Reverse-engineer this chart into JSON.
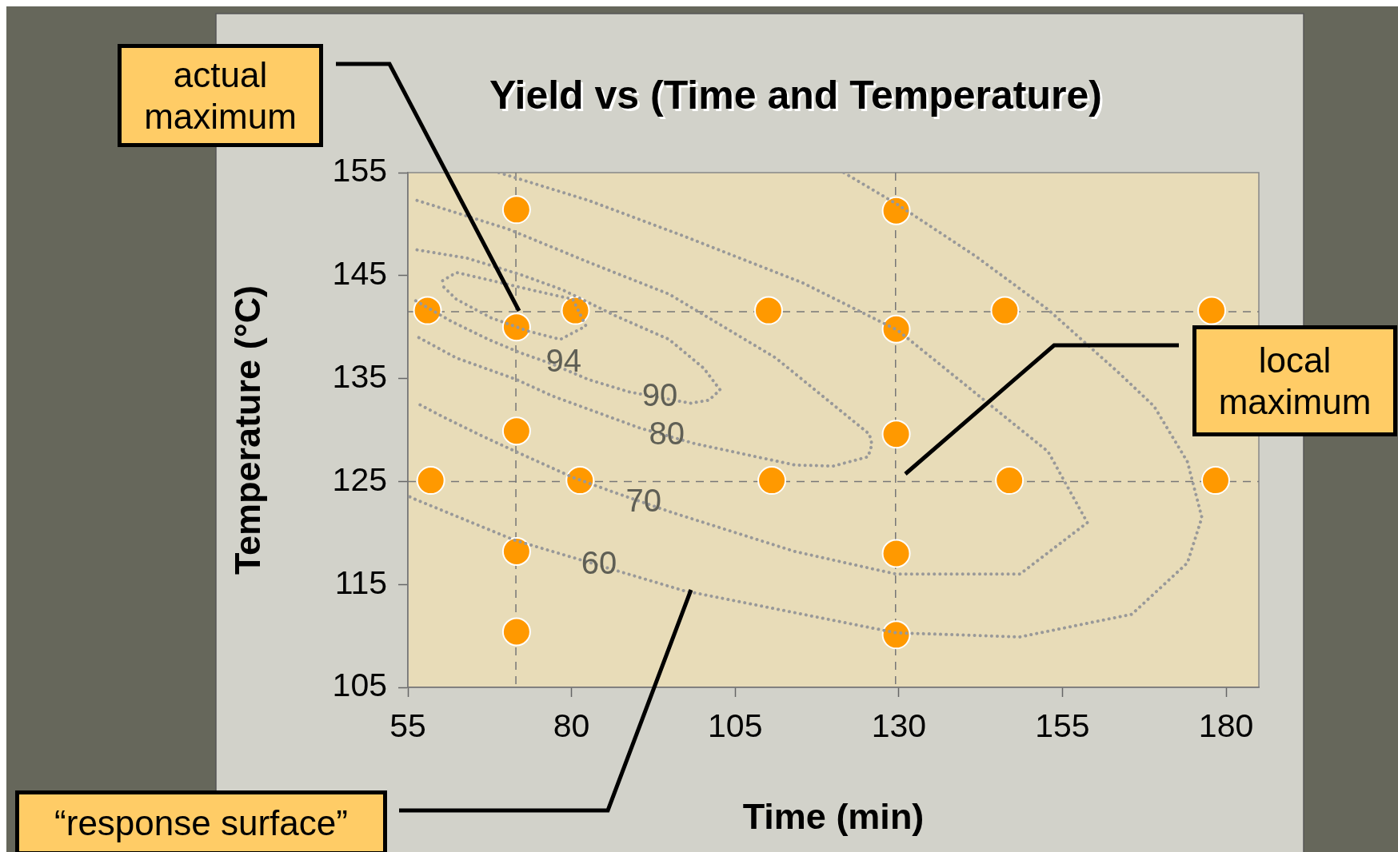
{
  "chart_data": {
    "type": "scatter",
    "title": "Yield vs (Time and Temperature)",
    "xlabel": "Time (min)",
    "ylabel": "Temperature (°C)",
    "xlim": [
      55,
      185
    ],
    "xticks": [
      55,
      80,
      105,
      130,
      155,
      180
    ],
    "ylim": [
      105,
      155
    ],
    "yticks": [
      105,
      115,
      125,
      135,
      145,
      155
    ],
    "grid": false,
    "legend": false,
    "series": [
      {
        "color": "#ff9900",
        "marker": "circle",
        "x": [
          71.6,
          129.6,
          58,
          71.6,
          80.6,
          110.1,
          129.6,
          146.2,
          177.8,
          71.6,
          129.6,
          58.5,
          81.3,
          110.6,
          146.9,
          178.4,
          71.6,
          129.6,
          71.6,
          129.6
        ],
        "values": [
          151.4,
          151.3,
          141.6,
          140,
          141.6,
          141.6,
          139.8,
          141.6,
          141.6,
          129.9,
          129.6,
          125.1,
          125.1,
          125.1,
          125.1,
          125.1,
          118.2,
          118,
          110.4,
          110.1
        ]
      },
      {
        "type": "line",
        "name": "60",
        "color": "#999999",
        "marker": "none",
        "line_style": "dotted",
        "x": [
          121.6,
          129.8,
          141.7,
          152.8,
          163.7,
          169,
          174.1,
          176.3,
          174.1,
          165.6,
          148.5,
          129.6,
          97.1,
          71.3,
          56,
          55
        ],
        "values": [
          155,
          151.9,
          146.9,
          141.7,
          135.5,
          132.3,
          126.9,
          121.5,
          117.1,
          112.1,
          109.9,
          110.3,
          114.4,
          119.3,
          123.3,
          123.6
        ]
      },
      {
        "type": "line",
        "name": "70",
        "color": "#999999",
        "marker": "none",
        "line_style": "dotted",
        "x": [
          68.9,
          82.6,
          96.9,
          115.3,
          129.8,
          152.8,
          158.8,
          148.5,
          129.6,
          114.1,
          95.3,
          86.7,
          80.2,
          72.2,
          66.4,
          60.3,
          56.4
        ],
        "values": [
          155,
          152.3,
          148.9,
          144.3,
          139.7,
          127.9,
          121,
          116,
          116,
          118.2,
          122,
          123.9,
          125.4,
          127.7,
          129.4,
          131.3,
          132.6
        ]
      },
      {
        "type": "line",
        "name": "80",
        "color": "#999999",
        "marker": "none",
        "line_style": "dotted",
        "x": [
          56.4,
          70.4,
          82.6,
          94.9,
          111.2,
          125.5,
          125.9,
          125.3,
          120,
          114.1,
          98.7,
          90.4,
          77.1,
          71.6,
          62.4,
          56.6
        ],
        "values": [
          152.3,
          149.5,
          146.3,
          143.2,
          137,
          129.6,
          128.6,
          127.4,
          126.5,
          126.6,
          128.7,
          130.2,
          133.3,
          134.9,
          137,
          139
        ]
      },
      {
        "type": "line",
        "name": "90",
        "color": "#999999",
        "marker": "none",
        "line_style": "dotted",
        "x": [
          56.4,
          64,
          72.2,
          78.7,
          86.7,
          94.9,
          100.2,
          102.7,
          101,
          98.2,
          88.8,
          82.6,
          77.1,
          72.2,
          67.3,
          61.5,
          55.8
        ],
        "values": [
          147.5,
          146.7,
          145.1,
          143.6,
          141.1,
          138.8,
          136,
          133.9,
          132.9,
          132.6,
          133.7,
          134.9,
          136.4,
          137.5,
          138.8,
          140.6,
          142.7
        ]
      },
      {
        "type": "line",
        "name": "94",
        "color": "#999999",
        "marker": "none",
        "line_style": "dotted",
        "x": [
          60.3,
          62.4,
          67.9,
          74.6,
          80.2,
          82.2,
          78.3,
          73.4,
          67.7,
          62.4,
          60.3
        ],
        "values": [
          144.5,
          145.3,
          144.5,
          143.5,
          142.7,
          140.1,
          138.8,
          139.6,
          140.9,
          142.7,
          144
        ]
      }
    ],
    "ref_lines": [
      {
        "axis": "y",
        "value": 141.5,
        "color": "#777777",
        "line_style": "dashed"
      },
      {
        "axis": "y",
        "value": 125,
        "color": "#777777",
        "line_style": "dashed"
      },
      {
        "axis": "x",
        "value": 71.5,
        "color": "#777777",
        "line_style": "dashed"
      },
      {
        "axis": "x",
        "value": 129.5,
        "color": "#777777",
        "line_style": "dashed"
      }
    ],
    "annotations": [
      "actual maximum",
      "local maximum",
      "“response surface”"
    ]
  }
}
